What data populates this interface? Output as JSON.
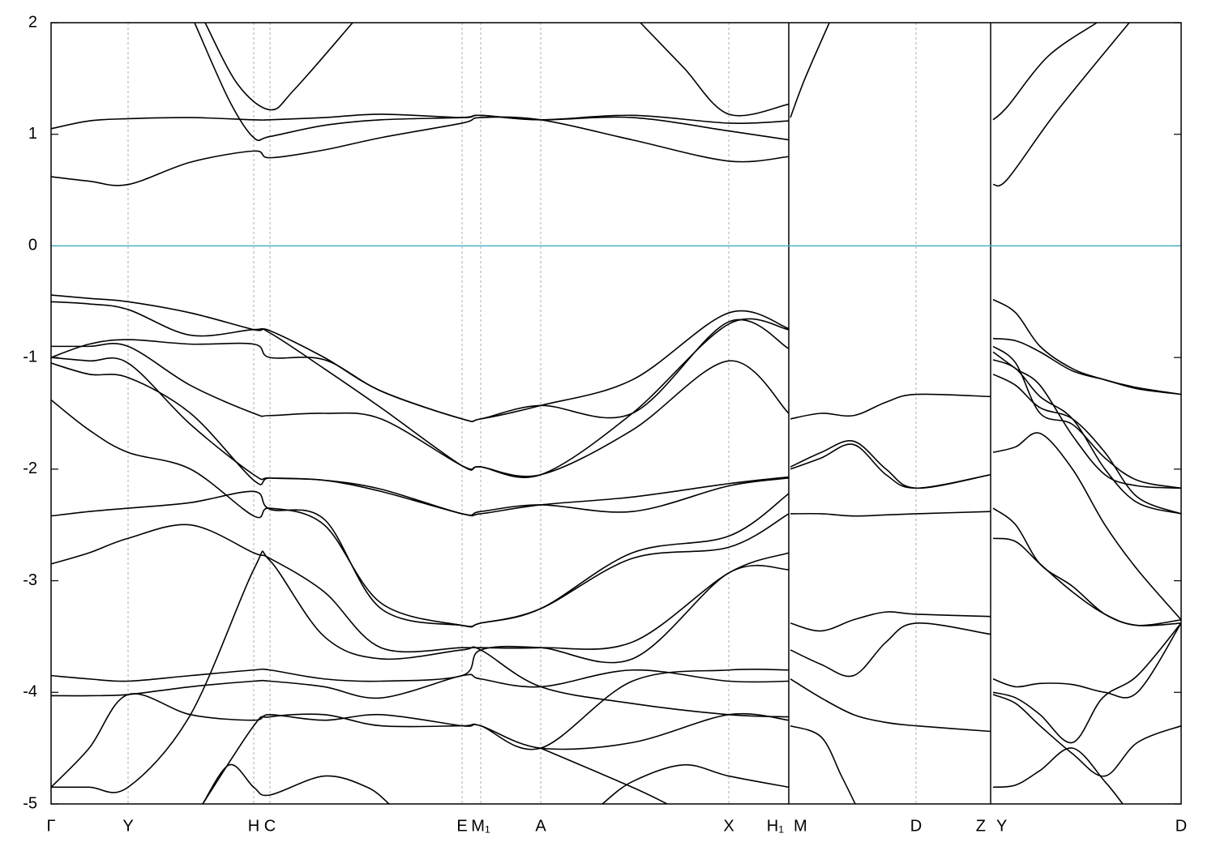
{
  "chart_data": {
    "type": "line",
    "xlim": [
      0,
      13.94
    ],
    "ylim": [
      -5,
      2
    ],
    "yticks": [
      -5,
      -4,
      -3,
      -2,
      -1,
      0,
      1,
      2
    ],
    "xticks": [
      {
        "value": 0,
        "label": "Γ"
      },
      {
        "value": 0.95,
        "label": "Y"
      },
      {
        "value": 2.5,
        "label": "H"
      },
      {
        "value": 2.7,
        "label": "C"
      },
      {
        "value": 5.07,
        "label": "E"
      },
      {
        "value": 5.3,
        "label": "M₁"
      },
      {
        "value": 6.04,
        "label": "A"
      },
      {
        "value": 8.36,
        "label": "X"
      },
      {
        "value": 9.1,
        "label": "H₁"
      },
      {
        "value": 9.12,
        "label": "M"
      },
      {
        "value": 10.67,
        "label": "D"
      },
      {
        "value": 11.59,
        "label": "Z"
      },
      {
        "value": 11.62,
        "label": "Y"
      },
      {
        "value": 13.94,
        "label": "D"
      }
    ],
    "fermi_level": 0,
    "fermi_color": "#4fb0c6",
    "series": [
      {
        "color": "#000000",
        "x": [
          0,
          0.47,
          0.95,
          1.72,
          2.5,
          2.7,
          3.37,
          4.07,
          5.07,
          5.3,
          6.04,
          7.17,
          8.36,
          9.1
        ],
        "values": [
          0.62,
          0.58,
          0.55,
          0.75,
          0.85,
          0.79,
          0.86,
          0.97,
          1.1,
          1.15,
          1.13,
          0.95,
          0.76,
          0.8
        ]
      },
      {
        "color": "#000000",
        "x": [
          0,
          0.47,
          0.95,
          1.72,
          2.5,
          2.7,
          3.37,
          4.07,
          5.07,
          5.3,
          6.04,
          7.17,
          8.36,
          9.1
        ],
        "values": [
          1.05,
          1.12,
          1.14,
          1.15,
          1.13,
          1.13,
          1.15,
          1.18,
          1.15,
          1.17,
          1.13,
          1.15,
          1.03,
          0.95
        ]
      },
      {
        "color": "#000000",
        "x": [
          1.77,
          2.2,
          2.5,
          2.7,
          3.37,
          4.07,
          5.07,
          5.3,
          6.04,
          7.17,
          8.36,
          9.1
        ],
        "values": [
          2,
          1.3,
          0.97,
          0.98,
          1.08,
          1.13,
          1.15,
          1.17,
          1.13,
          1.17,
          1.1,
          1.12
        ]
      },
      {
        "color": "#000000",
        "x": [
          1.9,
          2.3,
          2.7,
          3.0,
          3.72
        ],
        "values": [
          2,
          1.45,
          1.22,
          1.4,
          2
        ]
      },
      {
        "color": "#000000",
        "x": [
          7.27,
          7.8,
          8.36,
          9.1
        ],
        "values": [
          2,
          1.6,
          1.18,
          1.27
        ]
      },
      {
        "color": "#000000",
        "x": [
          0,
          0.47,
          0.95,
          1.72,
          2.5,
          2.7,
          3.37,
          4.07,
          5.07,
          5.3,
          6.04,
          7.17,
          8.36,
          9.1
        ],
        "values": [
          -0.44,
          -0.47,
          -0.5,
          -0.6,
          -0.75,
          -0.76,
          -1.0,
          -1.3,
          -1.55,
          -1.55,
          -1.43,
          -1.2,
          -0.6,
          -0.74
        ]
      },
      {
        "color": "#000000",
        "x": [
          0,
          0.47,
          0.95,
          1.72,
          2.5,
          2.7,
          3.37,
          4.07,
          5.07,
          5.3,
          6.04,
          7.17,
          8.36,
          9.1
        ],
        "values": [
          -0.5,
          -0.52,
          -0.57,
          -0.8,
          -0.75,
          -0.78,
          -1.1,
          -1.45,
          -1.97,
          -1.98,
          -2.05,
          -1.5,
          -0.7,
          -0.75
        ]
      },
      {
        "color": "#000000",
        "x": [
          0,
          0.47,
          0.95,
          1.72,
          2.5,
          2.7,
          3.37,
          4.07,
          5.07,
          5.3,
          6.04,
          7.17,
          8.36,
          9.1
        ],
        "values": [
          -1.0,
          -0.88,
          -0.84,
          -0.88,
          -0.88,
          -1.0,
          -1.02,
          -1.3,
          -1.55,
          -1.55,
          -1.43,
          -1.5,
          -0.68,
          -0.92
        ]
      },
      {
        "color": "#000000",
        "x": [
          0,
          0.47,
          0.95,
          1.72,
          2.5,
          2.7,
          3.37,
          4.07,
          5.07,
          5.3,
          6.04,
          7.17,
          8.36,
          9.1
        ],
        "values": [
          -0.9,
          -0.9,
          -0.9,
          -1.25,
          -1.5,
          -1.52,
          -1.5,
          -1.55,
          -1.97,
          -1.98,
          -2.05,
          -1.65,
          -1.03,
          -1.5
        ]
      },
      {
        "color": "#000000",
        "x": [
          0,
          0.47,
          0.95,
          1.72,
          2.5,
          2.7,
          3.37,
          4.07,
          5.07,
          5.3,
          6.04,
          7.17,
          8.36,
          9.1
        ],
        "values": [
          -1.0,
          -1.03,
          -1.05,
          -1.6,
          -2.05,
          -2.08,
          -2.1,
          -2.2,
          -2.4,
          -2.4,
          -2.32,
          -2.25,
          -2.13,
          -2.07
        ]
      },
      {
        "color": "#000000",
        "x": [
          0,
          0.47,
          0.95,
          1.72,
          2.5,
          2.7,
          3.37,
          4.07,
          5.07,
          5.3,
          6.04,
          7.17,
          8.36,
          9.1
        ],
        "values": [
          -1.05,
          -1.15,
          -1.18,
          -1.5,
          -2.1,
          -2.08,
          -2.1,
          -2.18,
          -2.4,
          -2.38,
          -2.32,
          -2.38,
          -2.15,
          -2.08
        ]
      },
      {
        "color": "#000000",
        "x": [
          0,
          0.47,
          0.95,
          1.72,
          2.5,
          2.7,
          3.37,
          4.07,
          5.07,
          5.3,
          6.04,
          7.17,
          8.36,
          9.1
        ],
        "values": [
          -1.38,
          -1.65,
          -1.85,
          -2.0,
          -2.42,
          -2.35,
          -2.5,
          -3.2,
          -3.4,
          -3.38,
          -3.25,
          -2.75,
          -2.6,
          -2.22
        ]
      },
      {
        "color": "#000000",
        "x": [
          0,
          0.47,
          0.95,
          1.72,
          2.5,
          2.7,
          3.37,
          4.07,
          5.07,
          5.3,
          6.04,
          7.17,
          8.36,
          9.1
        ],
        "values": [
          -2.42,
          -2.38,
          -2.35,
          -2.3,
          -2.2,
          -2.36,
          -2.45,
          -3.25,
          -3.4,
          -3.38,
          -3.25,
          -2.8,
          -2.7,
          -2.4
        ]
      },
      {
        "color": "#000000",
        "x": [
          0,
          0.47,
          0.95,
          1.72,
          2.5,
          2.7,
          3.37,
          4.07,
          5.07,
          5.3,
          6.04,
          7.17,
          8.36,
          9.1
        ],
        "values": [
          -2.85,
          -2.75,
          -2.62,
          -2.5,
          -2.75,
          -2.8,
          -3.1,
          -3.6,
          -3.6,
          -3.6,
          -3.6,
          -3.55,
          -2.93,
          -2.75
        ]
      },
      {
        "color": "#000000",
        "x": [
          0,
          0.47,
          0.95,
          1.72,
          2.5,
          2.7,
          3.37,
          4.07,
          5.07,
          5.3,
          6.04,
          7.17,
          8.36,
          9.1
        ],
        "values": [
          -3.85,
          -3.88,
          -3.9,
          -3.85,
          -3.8,
          -3.8,
          -3.88,
          -3.9,
          -3.85,
          -3.62,
          -3.6,
          -3.7,
          -2.93,
          -2.9
        ]
      },
      {
        "color": "#000000",
        "x": [
          0,
          0.47,
          0.95,
          1.72,
          2.5,
          2.7,
          3.37,
          4.07,
          5.07,
          5.3,
          6.04,
          7.17,
          8.36,
          9.1
        ],
        "values": [
          -4.03,
          -4.03,
          -4.02,
          -3.95,
          -3.9,
          -3.9,
          -3.95,
          -4.05,
          -3.85,
          -3.88,
          -3.95,
          -3.8,
          -3.9,
          -3.9
        ]
      },
      {
        "color": "#000000",
        "x": [
          0,
          0.47,
          0.95,
          1.72,
          2.5,
          2.7,
          3.37,
          4.07,
          5.07,
          5.3,
          6.04,
          7.17,
          8.36,
          9.1
        ],
        "values": [
          -4.85,
          -4.5,
          -4.02,
          -4.2,
          -4.25,
          -4.2,
          -4.25,
          -4.2,
          -4.3,
          -4.3,
          -4.5,
          -3.9,
          -3.8,
          -3.8
        ]
      },
      {
        "color": "#000000",
        "x": [
          0,
          0.47,
          0.95,
          1.72,
          2.5,
          2.7,
          3.37,
          4.07,
          5.07,
          5.3,
          6.04,
          7.17,
          8.36,
          9.1
        ],
        "values": [
          -4.85,
          -4.85,
          -4.85,
          -4.2,
          -2.9,
          -2.82,
          -3.5,
          -3.7,
          -3.62,
          -3.62,
          -3.95,
          -4.1,
          -4.2,
          -4.22
        ]
      },
      {
        "color": "#000000",
        "x": [
          1.87,
          2.5,
          2.7,
          3.37,
          4.07,
          5.07,
          5.3,
          6.04,
          7.17,
          8.36,
          9.1
        ],
        "values": [
          -5,
          -4.3,
          -4.22,
          -4.2,
          -4.3,
          -4.3,
          -4.3,
          -4.5,
          -4.45,
          -4.2,
          -4.25
        ]
      },
      {
        "color": "#000000",
        "x": [
          1.87,
          2.2,
          2.5,
          2.7,
          3.37,
          3.9,
          4.17
        ],
        "values": [
          -5,
          -4.65,
          -4.85,
          -4.92,
          -4.75,
          -4.85,
          -5
        ]
      },
      {
        "color": "#000000",
        "x": [
          6.8,
          7.17,
          7.8,
          8.36,
          9.1
        ],
        "values": [
          -5,
          -4.8,
          -4.65,
          -4.75,
          -4.85
        ]
      },
      {
        "color": "#000000",
        "x": [
          6.04,
          7.17,
          7.6
        ],
        "values": [
          -4.5,
          -4.85,
          -5
        ]
      },
      {
        "color": "#000000",
        "x": [
          9.12,
          9.3,
          9.6
        ],
        "values": [
          1.15,
          1.5,
          2
        ]
      },
      {
        "color": "#000000",
        "x": [
          9.12,
          9.5,
          9.9,
          10.3,
          10.67,
          11.59
        ],
        "values": [
          -1.55,
          -1.5,
          -1.52,
          -1.4,
          -1.33,
          -1.35
        ]
      },
      {
        "color": "#000000",
        "x": [
          9.12,
          9.5,
          9.9,
          10.3,
          10.67,
          11.59
        ],
        "values": [
          -1.98,
          -1.85,
          -1.75,
          -2.0,
          -2.17,
          -2.05
        ]
      },
      {
        "color": "#000000",
        "x": [
          9.12,
          9.5,
          9.9,
          10.3,
          10.67,
          11.59
        ],
        "values": [
          -2.0,
          -1.9,
          -1.78,
          -2.05,
          -2.17,
          -2.05
        ]
      },
      {
        "color": "#000000",
        "x": [
          9.12,
          9.5,
          9.9,
          10.3,
          10.67,
          11.59
        ],
        "values": [
          -2.4,
          -2.4,
          -2.42,
          -2.41,
          -2.4,
          -2.38
        ]
      },
      {
        "color": "#000000",
        "x": [
          9.12,
          9.5,
          9.9,
          10.3,
          10.67,
          11.59
        ],
        "values": [
          -3.38,
          -3.45,
          -3.35,
          -3.28,
          -3.3,
          -3.32
        ]
      },
      {
        "color": "#000000",
        "x": [
          9.12,
          9.5,
          9.9,
          10.3,
          10.67,
          11.59
        ],
        "values": [
          -3.62,
          -3.75,
          -3.85,
          -3.55,
          -3.38,
          -3.48
        ]
      },
      {
        "color": "#000000",
        "x": [
          9.12,
          9.5,
          9.9,
          10.3,
          10.67,
          11.59
        ],
        "values": [
          -3.88,
          -4.05,
          -4.2,
          -4.27,
          -4.3,
          -4.35
        ]
      },
      {
        "color": "#000000",
        "x": [
          9.12,
          9.5,
          9.75,
          9.92
        ],
        "values": [
          -4.3,
          -4.4,
          -4.75,
          -5
        ]
      },
      {
        "color": "#000000",
        "x": [
          11.62,
          11.8,
          12.3,
          12.9
        ],
        "values": [
          1.13,
          1.25,
          1.7,
          2
        ]
      },
      {
        "color": "#000000",
        "x": [
          11.62,
          11.8,
          12.4,
          13.3
        ],
        "values": [
          0.55,
          0.6,
          1.2,
          2
        ]
      },
      {
        "color": "#000000",
        "x": [
          11.62,
          11.9,
          12.2,
          12.6,
          13.0,
          13.4,
          13.94
        ],
        "values": [
          -0.48,
          -0.6,
          -0.9,
          -1.1,
          -1.2,
          -1.27,
          -1.33
        ]
      },
      {
        "color": "#000000",
        "x": [
          11.62,
          11.9,
          12.2,
          12.6,
          13.0,
          13.4,
          13.94
        ],
        "values": [
          -0.83,
          -0.85,
          -0.95,
          -1.12,
          -1.2,
          -1.28,
          -1.33
        ]
      },
      {
        "color": "#000000",
        "x": [
          11.62,
          11.9,
          12.2,
          12.6,
          13.0,
          13.4,
          13.94
        ],
        "values": [
          -0.9,
          -1.05,
          -1.5,
          -1.6,
          -1.9,
          -2.1,
          -2.17
        ]
      },
      {
        "color": "#000000",
        "x": [
          11.62,
          11.9,
          12.2,
          12.6,
          13.0,
          13.4,
          13.94
        ],
        "values": [
          -0.95,
          -1.1,
          -1.25,
          -1.7,
          -2.05,
          -2.15,
          -2.17
        ]
      },
      {
        "color": "#000000",
        "x": [
          11.62,
          11.9,
          12.2,
          12.6,
          13.0,
          13.4,
          13.94
        ],
        "values": [
          -1.02,
          -1.1,
          -1.35,
          -1.55,
          -2.0,
          -2.3,
          -2.4
        ]
      },
      {
        "color": "#000000",
        "x": [
          11.62,
          11.9,
          12.2,
          12.6,
          13.0,
          13.4,
          13.94
        ],
        "values": [
          -1.15,
          -1.25,
          -1.45,
          -1.55,
          -1.85,
          -2.25,
          -2.4
        ]
      },
      {
        "color": "#000000",
        "x": [
          11.62,
          11.9,
          12.2,
          12.6,
          13.0,
          13.4,
          13.94
        ],
        "values": [
          -1.85,
          -1.8,
          -1.68,
          -2.0,
          -2.5,
          -2.9,
          -3.35
        ]
      },
      {
        "color": "#000000",
        "x": [
          11.62,
          11.9,
          12.2,
          12.6,
          13.0,
          13.4,
          13.94
        ],
        "values": [
          -2.35,
          -2.5,
          -2.85,
          -3.05,
          -3.3,
          -3.4,
          -3.38
        ]
      },
      {
        "color": "#000000",
        "x": [
          11.62,
          11.9,
          12.2,
          12.6,
          13.0,
          13.4,
          13.94
        ],
        "values": [
          -2.62,
          -2.65,
          -2.85,
          -3.1,
          -3.3,
          -3.4,
          -3.35
        ]
      },
      {
        "color": "#000000",
        "x": [
          11.62,
          11.9,
          12.2,
          12.6,
          13.0,
          13.4,
          13.94
        ],
        "values": [
          -3.88,
          -3.95,
          -3.92,
          -3.93,
          -4.0,
          -4.0,
          -3.38
        ]
      },
      {
        "color": "#000000",
        "x": [
          11.62,
          11.9,
          12.2,
          12.6,
          13.0,
          13.4,
          13.94
        ],
        "values": [
          -4.02,
          -4.1,
          -4.3,
          -4.55,
          -4.75,
          -4.45,
          -4.3
        ]
      },
      {
        "color": "#000000",
        "x": [
          11.62,
          11.9,
          12.2,
          12.6,
          12.97,
          13.4,
          13.94
        ],
        "values": [
          -4.0,
          -4.05,
          -4.2,
          -4.45,
          -4.05,
          -3.85,
          -3.38
        ]
      },
      {
        "color": "#000000",
        "x": [
          11.62,
          11.9,
          12.2,
          12.6,
          13.0,
          13.22
        ],
        "values": [
          -4.85,
          -4.83,
          -4.7,
          -4.5,
          -4.8,
          -5
        ]
      }
    ]
  }
}
